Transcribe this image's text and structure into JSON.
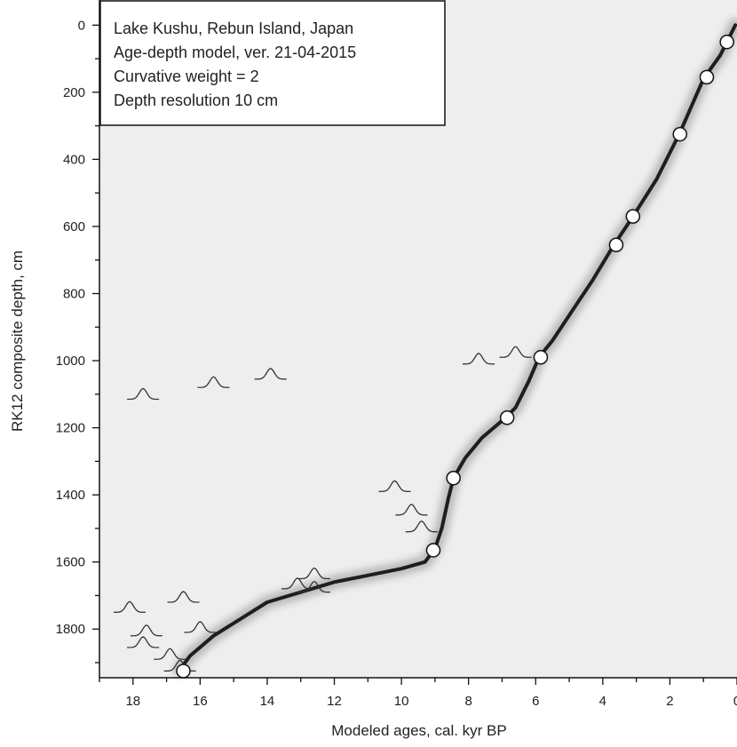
{
  "colors": {
    "plot_background": "#eeeeee",
    "model_band": "#1e1e1e",
    "model_band_halo": "#8a8a8a",
    "date_distribution": "#333333",
    "tephra_marker_fill": "#ffffff",
    "tephra_marker_stroke": "#111111"
  },
  "chart_data": {
    "type": "scatter",
    "description_lines": [
      "Lake Kushu, Rebun Island, Japan",
      "Age-depth model, ver. 21-04-2015",
      "Curvative weight = 2",
      "Depth resolution 10 cm"
    ],
    "xlabel": "Modeled ages, cal. kyr BP",
    "ylabel": "RK12 composite depth, cm",
    "x_ticks": [
      18,
      16,
      14,
      12,
      10,
      8,
      6,
      4,
      2,
      0
    ],
    "y_ticks": [
      0,
      200,
      400,
      600,
      800,
      1000,
      1200,
      1400,
      1600,
      1800
    ],
    "xlim": [
      19.0,
      0.0
    ],
    "ylim": [
      1945,
      -75
    ],
    "x_reversed": true,
    "y_reversed": true,
    "legend_position": "top-left",
    "series": [
      {
        "kind": "model",
        "points": [
          [
            0.05,
            0
          ],
          [
            0.5,
            90
          ],
          [
            1.0,
            160
          ],
          [
            1.7,
            320
          ],
          [
            2.4,
            460
          ],
          [
            3.1,
            570
          ],
          [
            3.7,
            660
          ],
          [
            4.3,
            760
          ],
          [
            4.9,
            850
          ],
          [
            5.5,
            940
          ],
          [
            5.9,
            990
          ],
          [
            6.2,
            1060
          ],
          [
            6.6,
            1140
          ],
          [
            6.9,
            1170
          ],
          [
            7.6,
            1230
          ],
          [
            8.1,
            1290
          ],
          [
            8.45,
            1350
          ],
          [
            8.6,
            1410
          ],
          [
            8.8,
            1500
          ],
          [
            9.0,
            1560
          ],
          [
            9.3,
            1600
          ],
          [
            10.0,
            1620
          ],
          [
            11.0,
            1640
          ],
          [
            12.0,
            1660
          ],
          [
            13.0,
            1690
          ],
          [
            14.0,
            1720
          ],
          [
            14.8,
            1770
          ],
          [
            15.6,
            1820
          ],
          [
            16.3,
            1880
          ],
          [
            16.6,
            1920
          ]
        ]
      },
      {
        "kind": "tephra_markers",
        "points": [
          [
            0.3,
            50
          ],
          [
            0.9,
            155
          ],
          [
            1.7,
            325
          ],
          [
            3.1,
            570
          ],
          [
            3.6,
            655
          ],
          [
            5.85,
            990
          ],
          [
            6.85,
            1170
          ],
          [
            8.45,
            1350
          ],
          [
            9.05,
            1565
          ],
          [
            16.5,
            1925
          ]
        ]
      },
      {
        "kind": "date_distributions",
        "points": [
          [
            17.7,
            1115
          ],
          [
            15.6,
            1080
          ],
          [
            13.9,
            1055
          ],
          [
            7.7,
            1010
          ],
          [
            6.6,
            990
          ],
          [
            10.2,
            1390
          ],
          [
            9.7,
            1460
          ],
          [
            9.4,
            1510
          ],
          [
            12.6,
            1650
          ],
          [
            13.1,
            1680
          ],
          [
            12.6,
            1690
          ],
          [
            18.1,
            1750
          ],
          [
            16.5,
            1720
          ],
          [
            17.6,
            1820
          ],
          [
            16.0,
            1810
          ],
          [
            17.7,
            1855
          ],
          [
            16.9,
            1890
          ],
          [
            16.6,
            1925
          ]
        ]
      }
    ]
  }
}
